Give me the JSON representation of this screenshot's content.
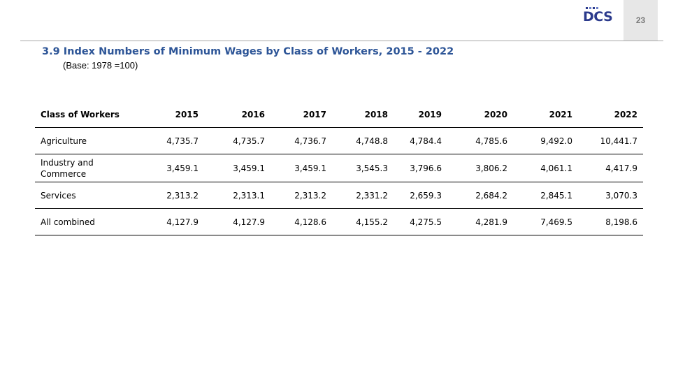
{
  "page_number": "23",
  "logo": {
    "text": "DCS"
  },
  "title": "3.9 Index Numbers of Minimum Wages by Class of Workers, 2015 - 2022",
  "subtitle": "(Base: 1978 =100)",
  "table": {
    "headers": [
      "Class of Workers",
      "2015",
      "2016",
      "2017",
      "2018",
      "2019",
      "2020",
      "2021",
      "2022"
    ],
    "rows": [
      [
        "Agriculture",
        "4,735.7",
        "4,735.7",
        "4,736.7",
        "4,748.8",
        "4,784.4",
        "4,785.6",
        "9,492.0",
        "10,441.7"
      ],
      [
        "Industry and Commerce",
        "3,459.1",
        "3,459.1",
        "3,459.1",
        "3,545.3",
        "3,796.6",
        "3,806.2",
        "4,061.1",
        "4,417.9"
      ],
      [
        "Services",
        "2,313.2",
        "2,313.1",
        "2,313.2",
        "2,331.2",
        "2,659.3",
        "2,684.2",
        "2,845.1",
        "3,070.3"
      ],
      [
        "All combined",
        "4,127.9",
        "4,127.9",
        "4,128.6",
        "4,155.2",
        "4,275.5",
        "4,281.9",
        "7,469.5",
        "8,198.6"
      ]
    ]
  }
}
